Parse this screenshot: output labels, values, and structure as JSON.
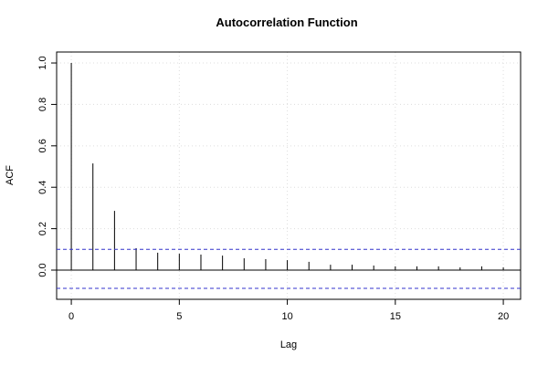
{
  "chart_data": {
    "type": "acf",
    "title": "Autocorrelation Function",
    "x_label": "Lag",
    "y_label": "ACF",
    "x": [
      0,
      1,
      2,
      3,
      4,
      5,
      6,
      7,
      8,
      9,
      10,
      11,
      12,
      13,
      14,
      15,
      16,
      17,
      18,
      19,
      20
    ],
    "values": [
      1.0,
      0.515,
      0.286,
      0.106,
      0.084,
      0.079,
      0.075,
      0.07,
      0.057,
      0.053,
      0.048,
      0.04,
      0.026,
      0.026,
      0.022,
      0.018,
      0.018,
      0.018,
      0.013,
      0.018,
      0.013
    ],
    "color": "#000000",
    "confidence_bounds": [
      0.1,
      -0.088
    ],
    "confidence_color": "#3333cc",
    "xlim": [
      -0.68,
      20.8
    ],
    "ylim": [
      -0.141,
      1.053
    ],
    "xticks": [
      0,
      5,
      10,
      15,
      20
    ],
    "yticks": [
      {
        "value": 0,
        "label": "0.0"
      },
      {
        "value": 0.2,
        "label": "0.2"
      },
      {
        "value": 0.4,
        "label": "0.4"
      },
      {
        "value": 0.6,
        "label": "0.6"
      },
      {
        "value": 0.8,
        "label": "0.8"
      },
      {
        "value": 1,
        "label": "1.0"
      }
    ],
    "grid": true
  }
}
